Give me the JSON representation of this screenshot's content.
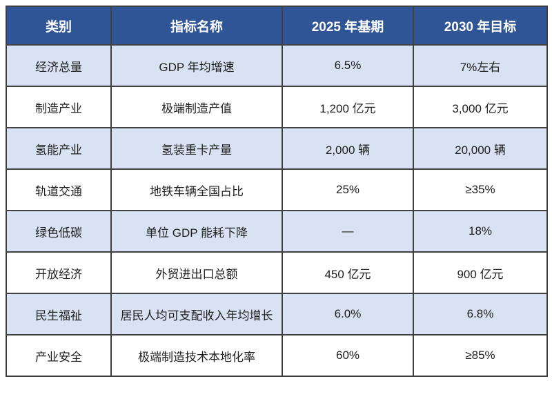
{
  "table": {
    "headers": [
      "类别",
      "指标名称",
      "2025 年基期",
      "2030 年目标"
    ],
    "rows": [
      {
        "cells": [
          "经济总量",
          "GDP 年均增速",
          "6.5%",
          "7%左右"
        ]
      },
      {
        "cells": [
          "制造产业",
          "极端制造产值",
          "1,200 亿元",
          "3,000 亿元"
        ]
      },
      {
        "cells": [
          "氢能产业",
          "氢装重卡产量",
          "2,000 辆",
          "20,000 辆"
        ]
      },
      {
        "cells": [
          "轨道交通",
          "地铁车辆全国占比",
          "25%",
          "≥35%"
        ]
      },
      {
        "cells": [
          "绿色低碳",
          "单位 GDP 能耗下降",
          "—",
          "18%"
        ]
      },
      {
        "cells": [
          "开放经济",
          "外贸进出口总额",
          "450 亿元",
          "900 亿元"
        ]
      },
      {
        "cells": [
          "民生福祉",
          "居民人均可支配收入年均增长",
          "6.0%",
          "6.8%"
        ]
      },
      {
        "cells": [
          "产业安全",
          "极端制造技术本地化率",
          "60%",
          "≥85%"
        ]
      }
    ],
    "colors": {
      "header_bg": "#2F5597",
      "header_text": "#FFFFFF",
      "row_alt_bg": "#D9E2F3",
      "row_bg": "#FFFFFF",
      "border": "#404040",
      "body_text": "#1F1F1F"
    }
  }
}
